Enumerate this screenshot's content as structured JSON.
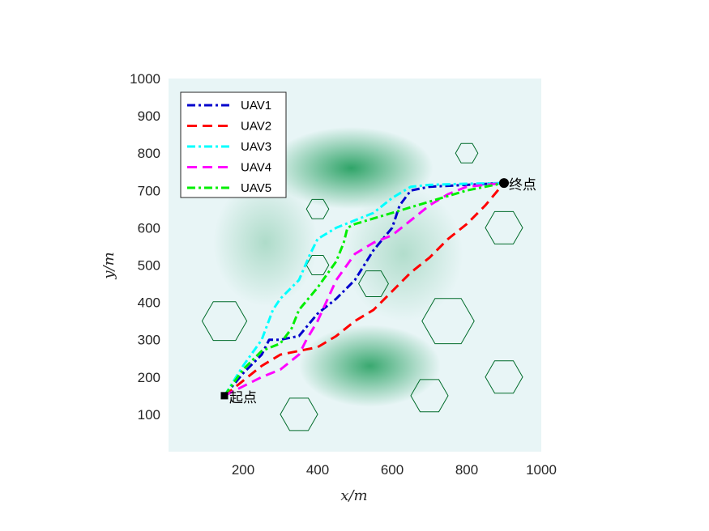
{
  "chart_data": {
    "type": "line",
    "xlabel": "x/m",
    "ylabel": "y/m",
    "xlim": [
      0,
      1000
    ],
    "ylim": [
      0,
      1000
    ],
    "xticks": [
      "200",
      "400",
      "600",
      "800",
      "1000"
    ],
    "yticks": [
      "100",
      "200",
      "300",
      "400",
      "500",
      "600",
      "700",
      "800",
      "900",
      "1000"
    ],
    "legend_position": "top-left",
    "background": {
      "base_color": "#e8f5f6",
      "terrain_color": "#26a061",
      "peaks": [
        {
          "x": 490,
          "y": 760,
          "sx": 110,
          "sy": 55,
          "strength": 0.95
        },
        {
          "x": 540,
          "y": 230,
          "sx": 95,
          "sy": 55,
          "strength": 0.9
        },
        {
          "x": 260,
          "y": 560,
          "sx": 70,
          "sy": 85,
          "strength": 0.3
        },
        {
          "x": 630,
          "y": 530,
          "sx": 80,
          "sy": 90,
          "strength": 0.28
        }
      ]
    },
    "obstacles": [
      {
        "cx": 150,
        "cy": 350,
        "r": 60
      },
      {
        "cx": 400,
        "cy": 650,
        "r": 30
      },
      {
        "cx": 400,
        "cy": 500,
        "r": 30
      },
      {
        "cx": 550,
        "cy": 450,
        "r": 40
      },
      {
        "cx": 800,
        "cy": 800,
        "r": 30
      },
      {
        "cx": 900,
        "cy": 600,
        "r": 50
      },
      {
        "cx": 750,
        "cy": 350,
        "r": 70
      },
      {
        "cx": 350,
        "cy": 100,
        "r": 50
      },
      {
        "cx": 700,
        "cy": 150,
        "r": 50
      },
      {
        "cx": 900,
        "cy": 200,
        "r": 50
      }
    ],
    "start": {
      "x": 150,
      "y": 150,
      "label": "起点"
    },
    "end": {
      "x": 900,
      "y": 720,
      "label": "终点"
    },
    "series": [
      {
        "name": "UAV1",
        "color": "#0000cc",
        "dash": "dashdot",
        "x": [
          150,
          200,
          250,
          270,
          300,
          350,
          400,
          450,
          500,
          550,
          600,
          620,
          650,
          700,
          800,
          900
        ],
        "y": [
          150,
          210,
          260,
          300,
          300,
          310,
          370,
          410,
          460,
          540,
          600,
          660,
          700,
          710,
          715,
          720
        ]
      },
      {
        "name": "UAV2",
        "color": "#ff0000",
        "dash": "dashed",
        "x": [
          150,
          200,
          250,
          300,
          350,
          400,
          450,
          500,
          550,
          600,
          650,
          700,
          750,
          800,
          850,
          900
        ],
        "y": [
          150,
          190,
          230,
          260,
          270,
          280,
          310,
          350,
          380,
          430,
          480,
          520,
          570,
          610,
          660,
          720
        ]
      },
      {
        "name": "UAV3",
        "color": "#00ffff",
        "dash": "dashdot",
        "x": [
          150,
          200,
          250,
          280,
          300,
          350,
          380,
          400,
          450,
          500,
          550,
          600,
          650,
          700,
          800,
          900
        ],
        "y": [
          150,
          230,
          300,
          380,
          410,
          460,
          530,
          570,
          600,
          620,
          640,
          680,
          710,
          715,
          718,
          720
        ]
      },
      {
        "name": "UAV4",
        "color": "#ff00ff",
        "dash": "dashed",
        "x": [
          150,
          200,
          250,
          300,
          350,
          370,
          400,
          450,
          500,
          550,
          600,
          650,
          700,
          750,
          800,
          900
        ],
        "y": [
          150,
          175,
          200,
          220,
          260,
          300,
          350,
          460,
          530,
          560,
          580,
          620,
          660,
          690,
          710,
          720
        ]
      },
      {
        "name": "UAV5",
        "color": "#00ee00",
        "dash": "dashdot",
        "x": [
          150,
          200,
          250,
          300,
          330,
          350,
          400,
          450,
          470,
          480,
          500,
          600,
          700,
          800,
          900
        ],
        "y": [
          150,
          220,
          270,
          290,
          330,
          380,
          440,
          510,
          560,
          600,
          610,
          640,
          670,
          700,
          720
        ]
      }
    ]
  }
}
